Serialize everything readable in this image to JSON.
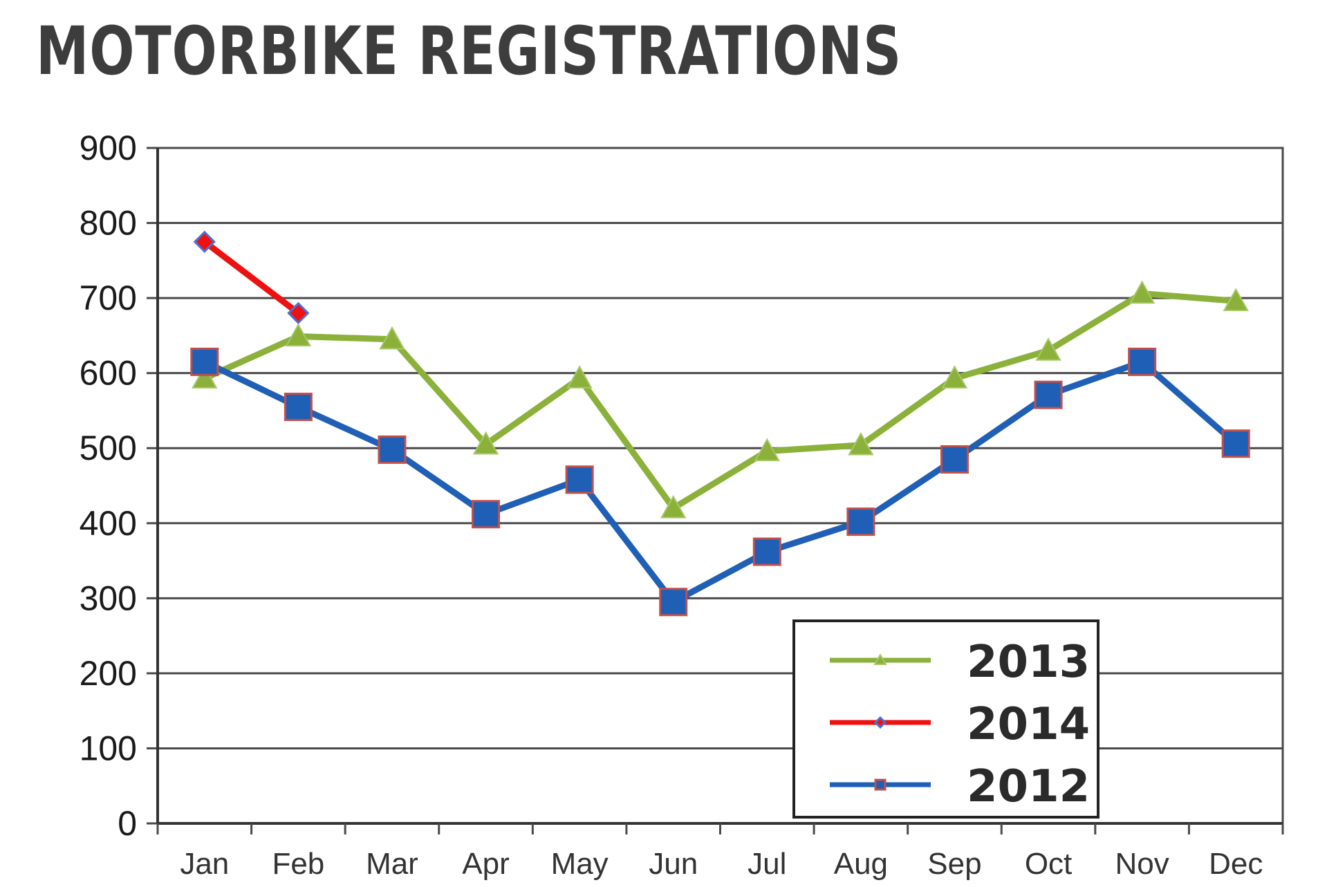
{
  "chart_data": {
    "type": "line",
    "title": "MOTORBIKE REGISTRATIONS",
    "categories": [
      "Jan",
      "Feb",
      "Mar",
      "Apr",
      "May",
      "Jun",
      "Jul",
      "Aug",
      "Sep",
      "Oct",
      "Nov",
      "Dec"
    ],
    "ylim": [
      0,
      900
    ],
    "yticks": [
      0,
      100,
      200,
      300,
      400,
      500,
      600,
      700,
      800,
      900
    ],
    "grid": true,
    "legend_position": "bottom-right",
    "series": [
      {
        "name": "2013",
        "color": "#8bb13a",
        "marker": "triangle",
        "values": [
          593,
          649,
          645,
          505,
          593,
          420,
          496,
          504,
          593,
          630,
          706,
          696
        ]
      },
      {
        "name": "2014",
        "color": "#ee1111",
        "marker": "diamond",
        "values": [
          775,
          680,
          null,
          null,
          null,
          null,
          null,
          null,
          null,
          null,
          null,
          null
        ]
      },
      {
        "name": "2012",
        "color": "#1f5fb5",
        "marker": "square",
        "values": [
          615,
          555,
          498,
          412,
          458,
          295,
          362,
          402,
          485,
          571,
          615,
          506
        ]
      }
    ]
  }
}
